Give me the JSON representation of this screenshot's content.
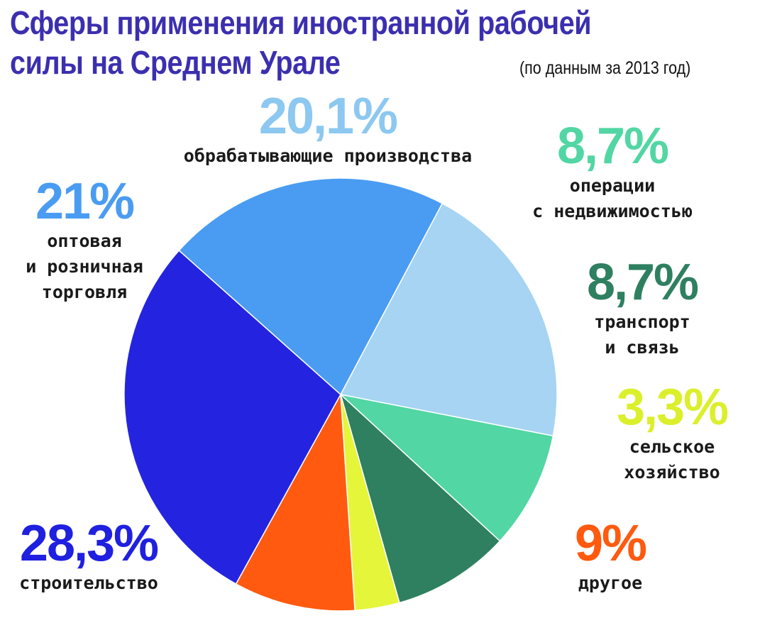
{
  "title": "Сферы применения иностранной рабочей силы на Среднем Урале",
  "subtitle": "(по данным за 2013 год)",
  "chart_data": {
    "type": "pie",
    "title": "Сферы применения иностранной рабочей силы на Среднем Урале",
    "subtitle": "(по данным за 2013 год)",
    "slices": [
      {
        "label": "обрабатывающие производства",
        "pct_label": "20,1%",
        "value": 20.1,
        "color": "#a6d4f2"
      },
      {
        "label": "операции с недвижимостью",
        "pct_label": "8,7%",
        "value": 8.7,
        "color": "#52d6a4"
      },
      {
        "label": "транспорт и связь",
        "pct_label": "8,7%",
        "value": 8.7,
        "color": "#2e8060"
      },
      {
        "label": "сельское хозяйство",
        "pct_label": "3,3%",
        "value": 3.3,
        "color": "#e4f53a"
      },
      {
        "label": "другое",
        "pct_label": "9%",
        "value": 9,
        "color": "#ff5a0f"
      },
      {
        "label": "строительство",
        "pct_label": "28,3%",
        "value": 28.3,
        "color": "#2424e0"
      },
      {
        "label": "оптовая и розничная торговля",
        "pct_label": "21%",
        "value": 21,
        "color": "#4a9cf2"
      }
    ]
  },
  "labels": {
    "manufacturing": {
      "pct": "20,1%",
      "name": "обрабатывающие производства",
      "color": "#8cc8f0"
    },
    "realestate": {
      "pct": "8,7%",
      "name": "операции\nс недвижимостью",
      "color": "#52d6a4"
    },
    "transport": {
      "pct": "8,7%",
      "name": "транспорт\nи связь",
      "color": "#2e8060"
    },
    "agriculture": {
      "pct": "3,3%",
      "name": "сельское\nхозяйство",
      "color": "#dbef2c"
    },
    "other": {
      "pct": "9%",
      "name": "другое",
      "color": "#ff5a0f"
    },
    "construction": {
      "pct": "28,3%",
      "name": "строительство",
      "color": "#2020e0"
    },
    "trade": {
      "pct": "21%",
      "name": "оптовая\nи розничная\nторговля",
      "color": "#4a9cf2"
    }
  }
}
